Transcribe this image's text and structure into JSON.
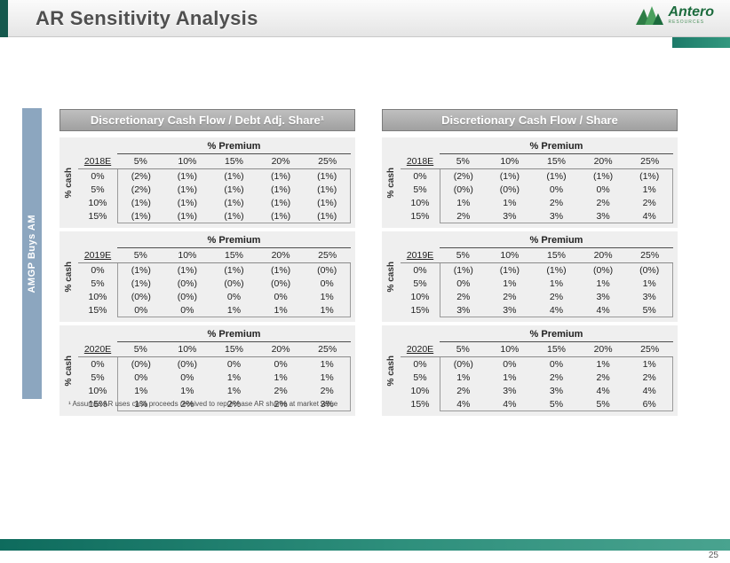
{
  "header": {
    "title": "AR Sensitivity Analysis",
    "logo_name": "Antero",
    "logo_sub": "Resources"
  },
  "side_label": "AMGP Buys AM",
  "footnote": "¹ Assumes AR uses cash proceeds received to repurchase AR shares at market value",
  "page_number": "25",
  "premium_label": "% Premium",
  "cash_label": "% cash",
  "col_headers": [
    "5%",
    "10%",
    "15%",
    "20%",
    "25%"
  ],
  "row_labels": [
    "0%",
    "5%",
    "10%",
    "15%"
  ],
  "colors": {
    "teal_accent": "#1d7a69",
    "steel_blue": "#8ca6bf",
    "panel_header_gray": "#adadad",
    "table_bg": "#efefef"
  },
  "panels": [
    {
      "title": "Discretionary Cash Flow / Debt Adj. Share¹",
      "tables": [
        {
          "year": "2018E",
          "rows": [
            [
              "(2%)",
              "(1%)",
              "(1%)",
              "(1%)",
              "(1%)"
            ],
            [
              "(2%)",
              "(1%)",
              "(1%)",
              "(1%)",
              "(1%)"
            ],
            [
              "(1%)",
              "(1%)",
              "(1%)",
              "(1%)",
              "(1%)"
            ],
            [
              "(1%)",
              "(1%)",
              "(1%)",
              "(1%)",
              "(1%)"
            ]
          ]
        },
        {
          "year": "2019E",
          "rows": [
            [
              "(1%)",
              "(1%)",
              "(1%)",
              "(1%)",
              "(0%)"
            ],
            [
              "(1%)",
              "(0%)",
              "(0%)",
              "(0%)",
              "0%"
            ],
            [
              "(0%)",
              "(0%)",
              "0%",
              "0%",
              "1%"
            ],
            [
              "0%",
              "0%",
              "1%",
              "1%",
              "1%"
            ]
          ]
        },
        {
          "year": "2020E",
          "rows": [
            [
              "(0%)",
              "(0%)",
              "0%",
              "0%",
              "1%"
            ],
            [
              "0%",
              "0%",
              "1%",
              "1%",
              "1%"
            ],
            [
              "1%",
              "1%",
              "1%",
              "2%",
              "2%"
            ],
            [
              "1%",
              "2%",
              "2%",
              "2%",
              "3%"
            ]
          ]
        }
      ]
    },
    {
      "title": "Discretionary Cash Flow / Share",
      "tables": [
        {
          "year": "2018E",
          "rows": [
            [
              "(2%)",
              "(1%)",
              "(1%)",
              "(1%)",
              "(1%)"
            ],
            [
              "(0%)",
              "(0%)",
              "0%",
              "0%",
              "1%"
            ],
            [
              "1%",
              "1%",
              "2%",
              "2%",
              "2%"
            ],
            [
              "2%",
              "3%",
              "3%",
              "3%",
              "4%"
            ]
          ]
        },
        {
          "year": "2019E",
          "rows": [
            [
              "(1%)",
              "(1%)",
              "(1%)",
              "(0%)",
              "(0%)"
            ],
            [
              "0%",
              "1%",
              "1%",
              "1%",
              "1%"
            ],
            [
              "2%",
              "2%",
              "2%",
              "3%",
              "3%"
            ],
            [
              "3%",
              "3%",
              "4%",
              "4%",
              "5%"
            ]
          ]
        },
        {
          "year": "2020E",
          "rows": [
            [
              "(0%)",
              "0%",
              "0%",
              "1%",
              "1%"
            ],
            [
              "1%",
              "1%",
              "2%",
              "2%",
              "2%"
            ],
            [
              "2%",
              "3%",
              "3%",
              "4%",
              "4%"
            ],
            [
              "4%",
              "4%",
              "5%",
              "5%",
              "6%"
            ]
          ]
        }
      ]
    }
  ]
}
